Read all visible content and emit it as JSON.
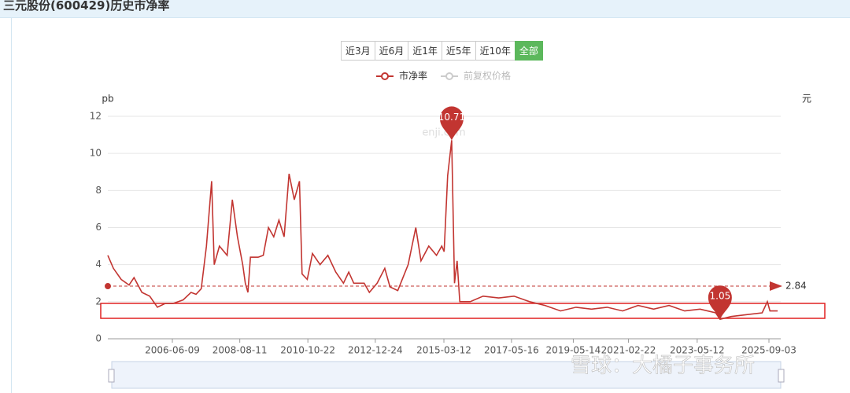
{
  "header": {
    "title": "三元股份(600429)历史市净率"
  },
  "range_buttons": [
    "近3月",
    "近6月",
    "近1年",
    "近5年",
    "近10年",
    "全部"
  ],
  "active_button": 5,
  "watermark": "雪球：大橘子事务所",
  "chart_data": {
    "type": "line",
    "y_unit": "pb",
    "y2_unit": "元",
    "chart_watermark": "enji.com",
    "x": [
      "2004-05-10",
      "2004-07-15",
      "2004-10-15",
      "2005-01-15",
      "2005-03-15",
      "2005-06-15",
      "2005-09-15",
      "2005-12-15",
      "2006-03-15",
      "2006-06-15",
      "2006-10-15",
      "2007-01-15",
      "2007-03-15",
      "2007-05-15",
      "2007-07-15",
      "2007-09-15",
      "2007-10-15",
      "2007-12-15",
      "2008-03-15",
      "2008-05-15",
      "2008-07-15",
      "2008-09-15",
      "2008-10-15",
      "2008-11-15",
      "2008-12-15",
      "2009-03-15",
      "2009-05-15",
      "2009-07-15",
      "2009-09-15",
      "2009-11-15",
      "2010-01-15",
      "2010-03-15",
      "2010-05-15",
      "2010-07-15",
      "2010-08-15",
      "2010-10-15",
      "2010-12-15",
      "2011-03-15",
      "2011-06-15",
      "2011-09-15",
      "2011-12-15",
      "2012-02-15",
      "2012-04-15",
      "2012-08-15",
      "2012-10-15",
      "2013-01-15",
      "2013-04-15",
      "2013-06-15",
      "2013-09-15",
      "2014-01-15",
      "2014-04-15",
      "2014-06-15",
      "2014-09-15",
      "2014-12-15",
      "2015-02-15",
      "2015-03-15",
      "2015-04-25",
      "2015-06-12",
      "2015-07-15",
      "2015-08-15",
      "2015-09-15",
      "2016-01-15",
      "2016-06-15",
      "2016-12-15",
      "2017-06-15",
      "2017-12-15",
      "2018-06-15",
      "2018-12-15",
      "2019-06-15",
      "2019-12-15",
      "2020-06-15",
      "2020-12-15",
      "2021-06-15",
      "2021-12-15",
      "2022-06-15",
      "2022-12-15",
      "2023-06-15",
      "2023-12-15",
      "2024-02-05",
      "2024-06-15",
      "2024-12-15",
      "2025-06-15",
      "2025-08-15",
      "2025-09-15",
      "2025-12-15"
    ],
    "series": [
      {
        "name": "市净率",
        "color": "#c23531",
        "values": [
          4.5,
          3.8,
          3.2,
          2.9,
          3.3,
          2.5,
          2.3,
          1.7,
          1.9,
          1.9,
          2.1,
          2.5,
          2.4,
          2.7,
          5.0,
          8.5,
          4.0,
          5.0,
          4.5,
          7.5,
          5.5,
          4.0,
          3.0,
          2.5,
          4.4,
          4.4,
          4.5,
          6.0,
          5.5,
          6.4,
          5.5,
          8.9,
          7.5,
          8.5,
          3.5,
          3.2,
          4.6,
          4.0,
          4.5,
          3.6,
          3.0,
          3.6,
          3.0,
          3.0,
          2.5,
          3.0,
          3.8,
          2.8,
          2.6,
          4.0,
          6.0,
          4.2,
          5.0,
          4.5,
          5.0,
          4.7,
          8.8,
          10.71,
          3.0,
          4.2,
          2.0,
          2.0,
          2.3,
          2.2,
          2.3,
          2.0,
          1.8,
          1.5,
          1.7,
          1.6,
          1.7,
          1.5,
          1.8,
          1.6,
          1.8,
          1.5,
          1.6,
          1.4,
          1.05,
          1.2,
          1.3,
          1.4,
          2.0,
          1.5,
          1.5
        ]
      }
    ],
    "hidden_series": [
      {
        "name": "前复权价格",
        "color": "#cccccc"
      }
    ],
    "mark_points": [
      {
        "x": "2015-06-12",
        "value": 10.71
      },
      {
        "x": "2024-02-05",
        "value": 1.05
      }
    ],
    "average_line": {
      "value": 2.84
    },
    "xlim": [
      "2004-05-10",
      "2026-01-20"
    ],
    "xticks": [
      "2006-06-09",
      "2008-08-11",
      "2010-10-22",
      "2012-12-24",
      "2015-03-12",
      "2017-05-16",
      "2019-05-14",
      "2021-02-22",
      "2023-05-12",
      "2025-09-03"
    ],
    "ylim": [
      0,
      12
    ],
    "yticks": [
      0,
      2,
      4,
      6,
      8,
      10,
      12
    ],
    "grid": true
  }
}
